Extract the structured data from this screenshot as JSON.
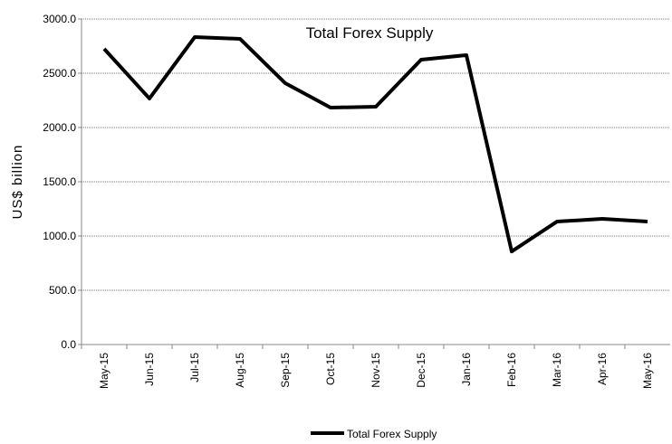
{
  "chart_data": {
    "type": "line",
    "title": "Total Forex Supply",
    "y_label": "US$ billion",
    "categories": [
      "May-15",
      "Jun-15",
      "Jul-15",
      "Aug-15",
      "Sep-15",
      "Oct-15",
      "Nov-15",
      "Dec-15",
      "Jan-16",
      "Feb-16",
      "Mar-16",
      "Apr-16",
      "May-16"
    ],
    "series": [
      {
        "name": "Total Forex Supply",
        "color": "#000000",
        "values": [
          2725,
          2267,
          2833,
          2817,
          2408,
          2183,
          2192,
          2625,
          2667,
          858,
          1133,
          1158,
          1133
        ]
      }
    ],
    "ylim": [
      0,
      3000
    ],
    "yticks": [
      {
        "value": 0,
        "label": "0.0"
      },
      {
        "value": 500,
        "label": "500.0"
      },
      {
        "value": 1000,
        "label": "1000.0"
      },
      {
        "value": 1500,
        "label": "1500.0"
      },
      {
        "value": 2000,
        "label": "2000.0"
      },
      {
        "value": 2500,
        "label": "2500.0"
      },
      {
        "value": 3000,
        "label": "3000.0"
      }
    ],
    "grid": true,
    "legend": "bottom"
  }
}
